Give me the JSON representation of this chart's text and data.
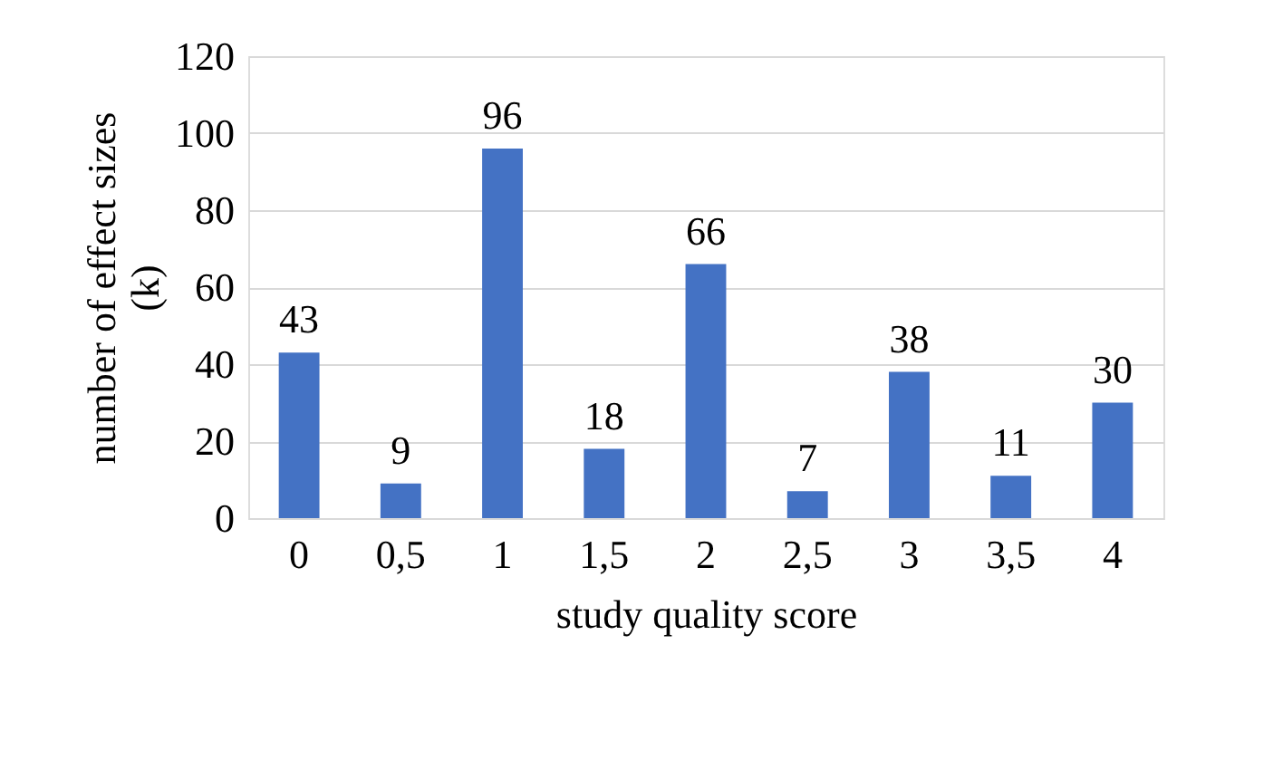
{
  "chart_data": {
    "type": "bar",
    "xlabel": "study quality score",
    "ylabel": "number of effect sizes (k)",
    "categories": [
      "0",
      "0,5",
      "1",
      "1,5",
      "2",
      "2,5",
      "3",
      "3,5",
      "4"
    ],
    "values": [
      43,
      9,
      96,
      18,
      66,
      7,
      38,
      11,
      30
    ],
    "color": "#4472c4",
    "ylim": [
      0,
      120
    ],
    "yticks": [
      0,
      20,
      40,
      60,
      80,
      100,
      120
    ],
    "grid": "y",
    "data_labels": true
  }
}
